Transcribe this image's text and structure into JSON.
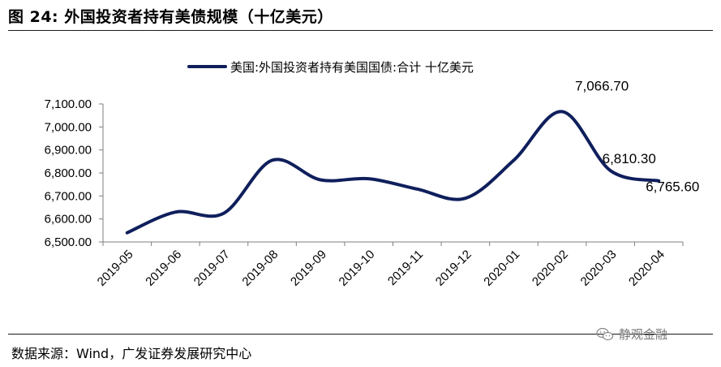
{
  "header": {
    "title": "图 24: 外国投资者持有美债规模（十亿美元）"
  },
  "footer": {
    "source": "数据来源：Wind，广发证券发展研究中心",
    "watermark": "静观金融"
  },
  "icons": {
    "watermark": "wechat-chat-bubbles-icon"
  },
  "colors": {
    "line": "#0f1f5c",
    "axis": "#7f7f7f"
  },
  "chart_data": {
    "type": "line",
    "title": "",
    "xlabel": "",
    "ylabel": "",
    "categories": [
      "2019-05",
      "2019-06",
      "2019-07",
      "2019-08",
      "2019-09",
      "2019-10",
      "2019-11",
      "2019-12",
      "2020-01",
      "2020-02",
      "2020-03",
      "2020-04"
    ],
    "series": [
      {
        "name": "美国:外国投资者持有美国国债:合计 十亿美元",
        "values": [
          6540,
          6630,
          6625,
          6855,
          6770,
          6775,
          6730,
          6690,
          6855,
          7066.7,
          6810.3,
          6765.6
        ]
      }
    ],
    "ylim": [
      6500,
      7100
    ],
    "yticks": [
      "6,500.00",
      "6,600.00",
      "6,700.00",
      "6,800.00",
      "6,900.00",
      "7,000.00",
      "7,100.00"
    ],
    "data_labels": [
      {
        "index": 9,
        "text": "7,066.70"
      },
      {
        "index": 10,
        "text": "6,810.30"
      },
      {
        "index": 11,
        "text": "6,765.60"
      }
    ],
    "grid": false,
    "legend": "top-center",
    "smooth": true
  }
}
